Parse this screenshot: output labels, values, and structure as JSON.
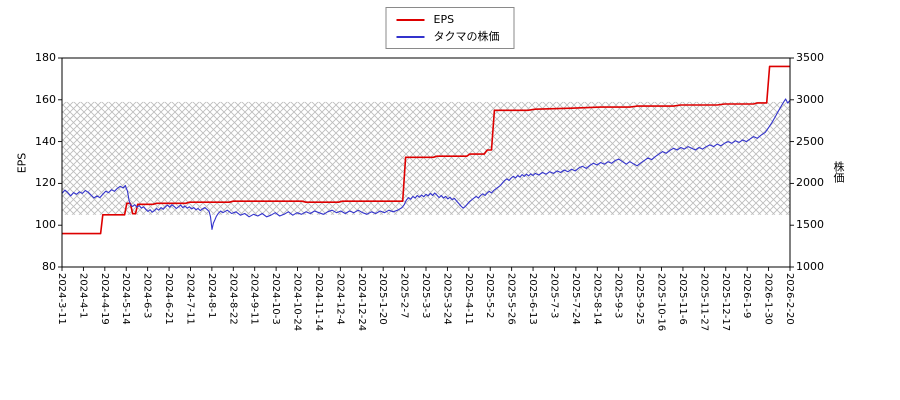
{
  "legend": {
    "items": [
      {
        "label": "EPS",
        "color": "#dd0000"
      },
      {
        "label": "タクマの株価",
        "color": "#3333cc"
      }
    ]
  },
  "chart_data": {
    "type": "line",
    "title": "",
    "left_axis_label": "EPS",
    "right_axis_label": "株価",
    "left_ylim": [
      80,
      180
    ],
    "right_ylim": [
      1000,
      3500
    ],
    "left_ticks": [
      180,
      160,
      140,
      120,
      100,
      80
    ],
    "right_ticks": [
      3500,
      3000,
      2500,
      2000,
      1500,
      1000
    ],
    "x_start": "2024-3-11",
    "x_end": "2026-2-20",
    "x_tick_labels": [
      "2024-3-11",
      "2024-4-1",
      "2024-4-19",
      "2024-5-14",
      "2024-6-3",
      "2024-6-21",
      "2024-7-11",
      "2024-8-1",
      "2024-8-22",
      "2024-9-11",
      "2024-10-3",
      "2024-10-24",
      "2024-11-14",
      "2024-12-4",
      "2024-12-24",
      "2025-1-20",
      "2025-2-7",
      "2025-3-3",
      "2025-3-24",
      "2025-4-11",
      "2025-5-2",
      "2025-5-26",
      "2025-6-13",
      "2025-7-3",
      "2025-7-24",
      "2025-8-14",
      "2025-9-3",
      "2025-9-25",
      "2025-10-16",
      "2025-11-6",
      "2025-11-27",
      "2025-12-17",
      "2026-1-9",
      "2026-1-30",
      "2026-2-20"
    ],
    "band": {
      "eps_from": 105,
      "eps_to": 159,
      "pattern_color": "#bdbdbd"
    },
    "series": [
      {
        "name": "EPS",
        "data_name": "eps-line",
        "axis": "left",
        "color": "#dd0000",
        "width": 1.6,
        "points": [
          [
            0.0,
            96
          ],
          [
            0.053,
            96
          ],
          [
            0.056,
            105
          ],
          [
            0.086,
            105
          ],
          [
            0.089,
            110.5
          ],
          [
            0.094,
            110.5
          ],
          [
            0.097,
            105.5
          ],
          [
            0.101,
            105.5
          ],
          [
            0.104,
            110
          ],
          [
            0.125,
            110
          ],
          [
            0.13,
            110.5
          ],
          [
            0.17,
            110.5
          ],
          [
            0.175,
            111
          ],
          [
            0.23,
            111
          ],
          [
            0.235,
            111.5
          ],
          [
            0.33,
            111.5
          ],
          [
            0.335,
            111
          ],
          [
            0.38,
            111
          ],
          [
            0.385,
            111.5
          ],
          [
            0.468,
            111.5
          ],
          [
            0.472,
            132.5
          ],
          [
            0.51,
            132.5
          ],
          [
            0.515,
            133
          ],
          [
            0.556,
            133
          ],
          [
            0.56,
            134
          ],
          [
            0.58,
            134
          ],
          [
            0.584,
            136
          ],
          [
            0.59,
            136
          ],
          [
            0.594,
            155
          ],
          [
            0.64,
            155
          ],
          [
            0.65,
            155.5
          ],
          [
            0.7,
            156
          ],
          [
            0.74,
            156.5
          ],
          [
            0.78,
            156.5
          ],
          [
            0.79,
            157
          ],
          [
            0.84,
            157
          ],
          [
            0.85,
            157.5
          ],
          [
            0.9,
            157.5
          ],
          [
            0.91,
            158
          ],
          [
            0.95,
            158
          ],
          [
            0.955,
            158.5
          ],
          [
            0.968,
            158.5
          ],
          [
            0.972,
            176
          ],
          [
            1.0,
            176
          ]
        ]
      },
      {
        "name": "タクマの株価",
        "data_name": "stock-price-line",
        "axis": "right",
        "color": "#3333cc",
        "width": 1.1,
        "points": [
          [
            0.0,
            1880
          ],
          [
            0.004,
            1920
          ],
          [
            0.008,
            1890
          ],
          [
            0.012,
            1850
          ],
          [
            0.016,
            1890
          ],
          [
            0.02,
            1870
          ],
          [
            0.024,
            1900
          ],
          [
            0.028,
            1880
          ],
          [
            0.032,
            1915
          ],
          [
            0.036,
            1895
          ],
          [
            0.04,
            1860
          ],
          [
            0.044,
            1825
          ],
          [
            0.048,
            1850
          ],
          [
            0.052,
            1830
          ],
          [
            0.056,
            1870
          ],
          [
            0.06,
            1905
          ],
          [
            0.064,
            1890
          ],
          [
            0.068,
            1925
          ],
          [
            0.072,
            1905
          ],
          [
            0.076,
            1940
          ],
          [
            0.08,
            1965
          ],
          [
            0.084,
            1945
          ],
          [
            0.087,
            1975
          ],
          [
            0.09,
            1905
          ],
          [
            0.092,
            1800
          ],
          [
            0.094,
            1745
          ],
          [
            0.097,
            1725
          ],
          [
            0.1,
            1745
          ],
          [
            0.103,
            1715
          ],
          [
            0.106,
            1735
          ],
          [
            0.109,
            1705
          ],
          [
            0.112,
            1720
          ],
          [
            0.115,
            1690
          ],
          [
            0.118,
            1665
          ],
          [
            0.121,
            1685
          ],
          [
            0.124,
            1655
          ],
          [
            0.127,
            1675
          ],
          [
            0.13,
            1700
          ],
          [
            0.133,
            1680
          ],
          [
            0.136,
            1710
          ],
          [
            0.139,
            1690
          ],
          [
            0.142,
            1720
          ],
          [
            0.145,
            1740
          ],
          [
            0.148,
            1715
          ],
          [
            0.151,
            1745
          ],
          [
            0.154,
            1725
          ],
          [
            0.157,
            1700
          ],
          [
            0.16,
            1720
          ],
          [
            0.163,
            1740
          ],
          [
            0.166,
            1710
          ],
          [
            0.169,
            1730
          ],
          [
            0.172,
            1705
          ],
          [
            0.175,
            1720
          ],
          [
            0.178,
            1695
          ],
          [
            0.181,
            1710
          ],
          [
            0.184,
            1685
          ],
          [
            0.187,
            1700
          ],
          [
            0.19,
            1675
          ],
          [
            0.193,
            1695
          ],
          [
            0.196,
            1710
          ],
          [
            0.199,
            1690
          ],
          [
            0.202,
            1665
          ],
          [
            0.204,
            1600
          ],
          [
            0.206,
            1450
          ],
          [
            0.208,
            1525
          ],
          [
            0.21,
            1565
          ],
          [
            0.212,
            1605
          ],
          [
            0.215,
            1645
          ],
          [
            0.218,
            1670
          ],
          [
            0.221,
            1650
          ],
          [
            0.227,
            1680
          ],
          [
            0.233,
            1640
          ],
          [
            0.239,
            1660
          ],
          [
            0.245,
            1620
          ],
          [
            0.251,
            1640
          ],
          [
            0.257,
            1600
          ],
          [
            0.263,
            1630
          ],
          [
            0.269,
            1610
          ],
          [
            0.275,
            1640
          ],
          [
            0.281,
            1600
          ],
          [
            0.287,
            1620
          ],
          [
            0.293,
            1650
          ],
          [
            0.299,
            1610
          ],
          [
            0.305,
            1630
          ],
          [
            0.311,
            1660
          ],
          [
            0.317,
            1620
          ],
          [
            0.323,
            1650
          ],
          [
            0.329,
            1630
          ],
          [
            0.335,
            1660
          ],
          [
            0.341,
            1640
          ],
          [
            0.347,
            1670
          ],
          [
            0.353,
            1650
          ],
          [
            0.359,
            1630
          ],
          [
            0.365,
            1660
          ],
          [
            0.371,
            1680
          ],
          [
            0.377,
            1650
          ],
          [
            0.383,
            1670
          ],
          [
            0.389,
            1640
          ],
          [
            0.395,
            1670
          ],
          [
            0.401,
            1650
          ],
          [
            0.407,
            1680
          ],
          [
            0.413,
            1650
          ],
          [
            0.419,
            1630
          ],
          [
            0.425,
            1660
          ],
          [
            0.431,
            1640
          ],
          [
            0.437,
            1670
          ],
          [
            0.443,
            1650
          ],
          [
            0.449,
            1680
          ],
          [
            0.455,
            1660
          ],
          [
            0.461,
            1680
          ],
          [
            0.467,
            1710
          ],
          [
            0.47,
            1745
          ],
          [
            0.473,
            1800
          ],
          [
            0.476,
            1830
          ],
          [
            0.479,
            1810
          ],
          [
            0.482,
            1845
          ],
          [
            0.485,
            1825
          ],
          [
            0.488,
            1855
          ],
          [
            0.491,
            1835
          ],
          [
            0.494,
            1860
          ],
          [
            0.497,
            1840
          ],
          [
            0.5,
            1870
          ],
          [
            0.503,
            1850
          ],
          [
            0.506,
            1880
          ],
          [
            0.509,
            1855
          ],
          [
            0.512,
            1885
          ],
          [
            0.515,
            1860
          ],
          [
            0.518,
            1830
          ],
          [
            0.521,
            1855
          ],
          [
            0.524,
            1825
          ],
          [
            0.527,
            1845
          ],
          [
            0.53,
            1815
          ],
          [
            0.533,
            1835
          ],
          [
            0.536,
            1805
          ],
          [
            0.539,
            1820
          ],
          [
            0.542,
            1790
          ],
          [
            0.545,
            1760
          ],
          [
            0.548,
            1730
          ],
          [
            0.551,
            1705
          ],
          [
            0.554,
            1725
          ],
          [
            0.557,
            1755
          ],
          [
            0.56,
            1785
          ],
          [
            0.563,
            1805
          ],
          [
            0.566,
            1825
          ],
          [
            0.569,
            1845
          ],
          [
            0.572,
            1825
          ],
          [
            0.575,
            1855
          ],
          [
            0.578,
            1875
          ],
          [
            0.581,
            1855
          ],
          [
            0.584,
            1885
          ],
          [
            0.587,
            1905
          ],
          [
            0.59,
            1885
          ],
          [
            0.593,
            1915
          ],
          [
            0.596,
            1935
          ],
          [
            0.599,
            1955
          ],
          [
            0.602,
            1975
          ],
          [
            0.605,
            2005
          ],
          [
            0.608,
            2035
          ],
          [
            0.611,
            2055
          ],
          [
            0.614,
            2035
          ],
          [
            0.617,
            2065
          ],
          [
            0.62,
            2085
          ],
          [
            0.623,
            2065
          ],
          [
            0.626,
            2095
          ],
          [
            0.629,
            2075
          ],
          [
            0.632,
            2105
          ],
          [
            0.635,
            2085
          ],
          [
            0.638,
            2110
          ],
          [
            0.641,
            2090
          ],
          [
            0.644,
            2115
          ],
          [
            0.647,
            2095
          ],
          [
            0.65,
            2120
          ],
          [
            0.655,
            2100
          ],
          [
            0.66,
            2130
          ],
          [
            0.665,
            2110
          ],
          [
            0.67,
            2140
          ],
          [
            0.675,
            2120
          ],
          [
            0.68,
            2150
          ],
          [
            0.685,
            2130
          ],
          [
            0.69,
            2160
          ],
          [
            0.695,
            2140
          ],
          [
            0.7,
            2170
          ],
          [
            0.705,
            2150
          ],
          [
            0.71,
            2185
          ],
          [
            0.715,
            2205
          ],
          [
            0.72,
            2180
          ],
          [
            0.725,
            2215
          ],
          [
            0.73,
            2240
          ],
          [
            0.735,
            2220
          ],
          [
            0.74,
            2250
          ],
          [
            0.745,
            2230
          ],
          [
            0.75,
            2260
          ],
          [
            0.755,
            2240
          ],
          [
            0.76,
            2275
          ],
          [
            0.765,
            2290
          ],
          [
            0.77,
            2260
          ],
          [
            0.775,
            2230
          ],
          [
            0.78,
            2260
          ],
          [
            0.785,
            2235
          ],
          [
            0.79,
            2210
          ],
          [
            0.795,
            2245
          ],
          [
            0.8,
            2275
          ],
          [
            0.805,
            2305
          ],
          [
            0.81,
            2285
          ],
          [
            0.815,
            2320
          ],
          [
            0.82,
            2350
          ],
          [
            0.825,
            2380
          ],
          [
            0.83,
            2360
          ],
          [
            0.835,
            2395
          ],
          [
            0.84,
            2420
          ],
          [
            0.845,
            2400
          ],
          [
            0.85,
            2430
          ],
          [
            0.855,
            2410
          ],
          [
            0.86,
            2440
          ],
          [
            0.865,
            2420
          ],
          [
            0.87,
            2400
          ],
          [
            0.875,
            2430
          ],
          [
            0.88,
            2410
          ],
          [
            0.885,
            2440
          ],
          [
            0.89,
            2460
          ],
          [
            0.895,
            2440
          ],
          [
            0.9,
            2470
          ],
          [
            0.905,
            2450
          ],
          [
            0.91,
            2480
          ],
          [
            0.915,
            2500
          ],
          [
            0.92,
            2480
          ],
          [
            0.925,
            2510
          ],
          [
            0.93,
            2490
          ],
          [
            0.935,
            2520
          ],
          [
            0.94,
            2500
          ],
          [
            0.945,
            2530
          ],
          [
            0.95,
            2560
          ],
          [
            0.955,
            2540
          ],
          [
            0.96,
            2575
          ],
          [
            0.966,
            2610
          ],
          [
            0.97,
            2660
          ],
          [
            0.975,
            2725
          ],
          [
            0.98,
            2800
          ],
          [
            0.985,
            2880
          ],
          [
            0.99,
            2955
          ],
          [
            0.994,
            3010
          ],
          [
            0.997,
            2960
          ],
          [
            1.0,
            2995
          ]
        ]
      }
    ]
  }
}
